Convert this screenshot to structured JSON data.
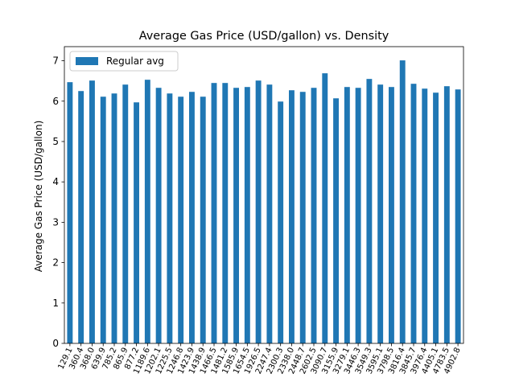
{
  "chart_data": {
    "type": "bar",
    "title": "Average Gas Price (USD/gallon) vs. Density",
    "xlabel": "",
    "ylabel": "Average Gas Price (USD/gallon)",
    "ylim": [
      0,
      7.35
    ],
    "yticks": [
      0,
      1,
      2,
      3,
      4,
      5,
      6,
      7
    ],
    "grid": false,
    "legend_position": "top-left",
    "x_tick_rotation_deg": 65,
    "categories": [
      "129.1",
      "360.4",
      "368.0",
      "639.9",
      "785.2",
      "865.9",
      "877.2",
      "1189.6",
      "1202.1",
      "1225.5",
      "1246.8",
      "1423.9",
      "1438.9",
      "1466.5",
      "1481.2",
      "1585.9",
      "1654.5",
      "1926.5",
      "2247.4",
      "2300.3",
      "2338.0",
      "2448.7",
      "2602.5",
      "3090.7",
      "3155.9",
      "3279.1",
      "3446.3",
      "3549.3",
      "3595.1",
      "3798.5",
      "3816.4",
      "3845.7",
      "3976.4",
      "4405.1",
      "4783.5",
      "4902.8"
    ],
    "series": [
      {
        "name": "Regular avg",
        "color": "#1f77b4",
        "values": [
          6.47,
          6.25,
          6.51,
          6.11,
          6.19,
          6.41,
          5.97,
          6.53,
          6.33,
          6.19,
          6.11,
          6.23,
          6.11,
          6.45,
          6.45,
          6.33,
          6.35,
          6.51,
          6.41,
          5.99,
          6.27,
          6.23,
          6.33,
          6.69,
          6.07,
          6.35,
          6.33,
          6.55,
          6.41,
          6.35,
          7.01,
          6.43,
          6.31,
          6.21,
          6.37,
          6.29
        ]
      }
    ]
  }
}
